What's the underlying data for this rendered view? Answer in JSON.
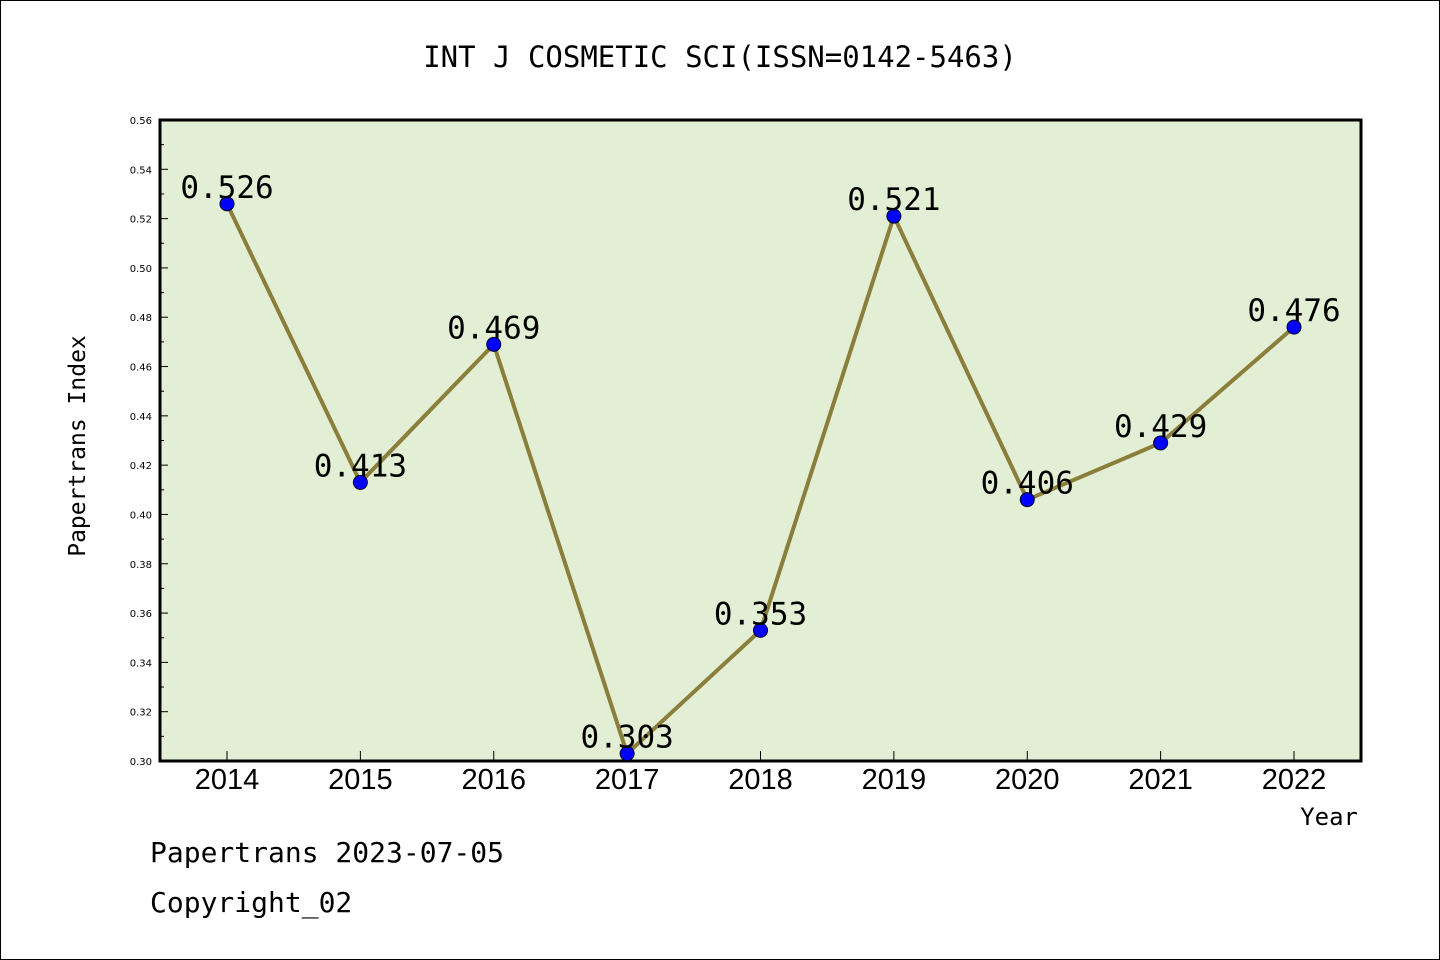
{
  "chart_data": {
    "type": "line",
    "title": "INT J COSMETIC SCI(ISSN=0142-5463)",
    "xlabel": "Year",
    "ylabel": "Papertrans Index",
    "categories": [
      "2014",
      "2015",
      "2016",
      "2017",
      "2018",
      "2019",
      "2020",
      "2021",
      "2022"
    ],
    "values": [
      0.526,
      0.413,
      0.469,
      0.303,
      0.353,
      0.521,
      0.406,
      0.429,
      0.476
    ],
    "data_labels": [
      "0.526",
      "0.413",
      "0.469",
      "0.303",
      "0.353",
      "0.521",
      "0.406",
      "0.429",
      "0.476"
    ],
    "ylim": [
      0.3,
      0.56
    ],
    "yticks": [
      "0.30",
      "0.32",
      "0.34",
      "0.36",
      "0.38",
      "0.40",
      "0.42",
      "0.44",
      "0.46",
      "0.48",
      "0.50",
      "0.52",
      "0.54",
      "0.56"
    ],
    "grid": false,
    "legend": "none",
    "colors": {
      "line": "#8B7D3A",
      "marker": "#0000FF",
      "plot_background": "#E2EFD4"
    }
  },
  "footer": {
    "line1": "Papertrans 2023-07-05",
    "line2": "Copyright_02"
  }
}
